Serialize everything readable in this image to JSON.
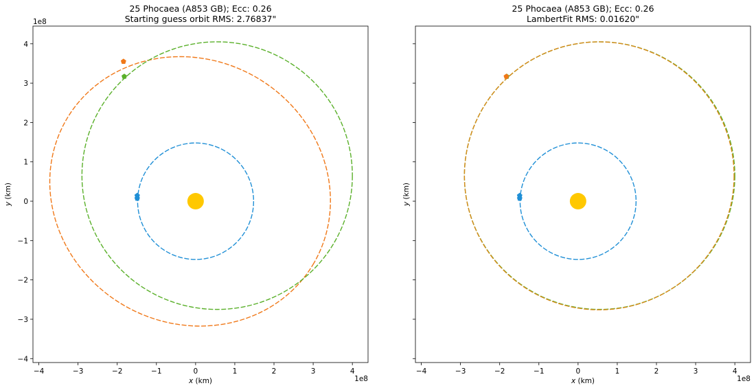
{
  "chart_data": [
    {
      "type": "scatter",
      "title_line1": "25 Phocaea (A853 GB); Ecc: 0.26",
      "title_line2": "Starting guess orbit RMS: 2.76837\"",
      "xlabel_var": "x",
      "xlabel_unit": " (km)",
      "ylabel_var": "y",
      "ylabel_unit": " (km)",
      "x_offset_label": "1e8",
      "y_offset_label": "1e8",
      "xlim": [
        -4.15,
        4.4
      ],
      "ylim": [
        -4.1,
        4.45
      ],
      "xticks": [
        -4,
        -3,
        -2,
        -1,
        0,
        1,
        2,
        3,
        4
      ],
      "yticks": [
        -4,
        -3,
        -2,
        -1,
        0,
        1,
        2,
        3,
        4
      ],
      "xtick_labels": [
        "−4",
        "−3",
        "−2",
        "−1",
        "0",
        "1",
        "2",
        "3",
        "4"
      ],
      "ytick_labels": [
        "−4",
        "−3",
        "−2",
        "−1",
        "0",
        "1",
        "2",
        "3",
        "4"
      ],
      "show_ytick_labels": true,
      "sun": {
        "x": 0,
        "y": 0,
        "color": "#ffc800"
      },
      "orbits": [
        {
          "name": "earth-orbit",
          "color": "#1f8fd6",
          "cx": 0.0,
          "cy": 0.0,
          "a": 1.48,
          "b": 1.48,
          "rot": 0
        },
        {
          "name": "initial-orbit",
          "color": "#f07818",
          "cx": -0.14,
          "cy": 0.25,
          "a": 3.65,
          "b": 3.35,
          "rot": -30
        },
        {
          "name": "true-orbit",
          "color": "#5ab02a",
          "cx": 0.55,
          "cy": 0.65,
          "a": 3.45,
          "b": 3.4,
          "rot": 0
        }
      ],
      "markers": [
        {
          "name": "earth-marker",
          "color": "#1f8fd6",
          "x": -1.49,
          "y": 0.14
        },
        {
          "name": "earth-marker-2",
          "color": "#1f8fd6",
          "x": -1.49,
          "y": 0.07
        },
        {
          "name": "initial-marker",
          "color": "#f07818",
          "x": -1.84,
          "y": 3.55
        },
        {
          "name": "true-marker",
          "color": "#5ab02a",
          "x": -1.82,
          "y": 3.17
        }
      ]
    },
    {
      "type": "scatter",
      "title_line1": "25 Phocaea (A853 GB); Ecc: 0.26",
      "title_line2": "LambertFit RMS: 0.01620\"",
      "xlabel_var": "x",
      "xlabel_unit": " (km)",
      "ylabel_var": "y",
      "ylabel_unit": " (km)",
      "x_offset_label": "1e8",
      "y_offset_label": "",
      "xlim": [
        -4.15,
        4.4
      ],
      "ylim": [
        -4.1,
        4.45
      ],
      "xticks": [
        -4,
        -3,
        -2,
        -1,
        0,
        1,
        2,
        3,
        4
      ],
      "yticks": [
        -4,
        -3,
        -2,
        -1,
        0,
        1,
        2,
        3,
        4
      ],
      "xtick_labels": [
        "−4",
        "−3",
        "−2",
        "−1",
        "0",
        "1",
        "2",
        "3",
        "4"
      ],
      "ytick_labels": [],
      "show_ytick_labels": false,
      "sun": {
        "x": 0,
        "y": 0,
        "color": "#ffc800"
      },
      "orbits": [
        {
          "name": "earth-orbit",
          "color": "#1f8fd6",
          "cx": 0.0,
          "cy": 0.0,
          "a": 1.48,
          "b": 1.48,
          "rot": 0
        },
        {
          "name": "true-orbit",
          "color": "#5ab02a",
          "cx": 0.55,
          "cy": 0.65,
          "a": 3.45,
          "b": 3.4,
          "rot": 0
        },
        {
          "name": "fitted-orbit",
          "color": "#d98a1a",
          "cx": 0.54,
          "cy": 0.645,
          "a": 3.44,
          "b": 3.405,
          "rot": 0
        }
      ],
      "markers": [
        {
          "name": "earth-marker",
          "color": "#1f8fd6",
          "x": -1.49,
          "y": 0.14
        },
        {
          "name": "earth-marker-2",
          "color": "#1f8fd6",
          "x": -1.49,
          "y": 0.07
        },
        {
          "name": "true-marker",
          "color": "#5ab02a",
          "x": -1.82,
          "y": 3.17
        },
        {
          "name": "fitted-marker",
          "color": "#f07818",
          "x": -1.83,
          "y": 3.17
        }
      ]
    }
  ]
}
